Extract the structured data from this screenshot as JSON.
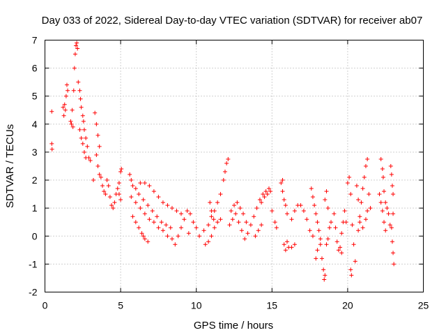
{
  "chart_data": {
    "type": "scatter",
    "title": "Day 033 of 2022, Sidereal Day-to-day VTEC variation (SDTVAR) for receiver ab07",
    "xlabel": "GPS time / hours",
    "ylabel": "SDTVAR / TECUs",
    "xlim": [
      0,
      25
    ],
    "ylim": [
      -2,
      7
    ],
    "xticks": [
      0,
      5,
      10,
      15,
      20,
      25
    ],
    "yticks": [
      -2,
      -1,
      0,
      1,
      2,
      3,
      4,
      5,
      6,
      7
    ],
    "xtick_labels": [
      "0",
      "5",
      "10",
      "15",
      "20",
      "25"
    ],
    "ytick_labels": [
      "-2",
      "-1",
      "0",
      "1",
      "2",
      "3",
      "4",
      "5",
      "6",
      "7"
    ],
    "grid": true,
    "marker": "+",
    "color": "#ff0000",
    "series": [
      {
        "name": "SDTVAR",
        "points": [
          [
            0.45,
            4.45
          ],
          [
            0.45,
            3.3
          ],
          [
            0.47,
            3.1
          ],
          [
            1.2,
            4.6
          ],
          [
            1.3,
            4.7
          ],
          [
            1.4,
            5.0
          ],
          [
            1.45,
            5.4
          ],
          [
            1.5,
            5.2
          ],
          [
            1.35,
            4.5
          ],
          [
            1.25,
            4.3
          ],
          [
            1.7,
            4.1
          ],
          [
            1.8,
            4.5
          ],
          [
            1.9,
            5.2
          ],
          [
            1.95,
            6.0
          ],
          [
            2.0,
            6.5
          ],
          [
            2.05,
            6.8
          ],
          [
            2.1,
            6.9
          ],
          [
            2.15,
            6.7
          ],
          [
            1.85,
            3.9
          ],
          [
            1.75,
            4.0
          ],
          [
            2.2,
            5.5
          ],
          [
            2.3,
            5.2
          ],
          [
            2.35,
            4.9
          ],
          [
            2.4,
            4.6
          ],
          [
            2.5,
            4.3
          ],
          [
            2.55,
            4.1
          ],
          [
            2.6,
            3.8
          ],
          [
            2.7,
            3.5
          ],
          [
            2.8,
            3.2
          ],
          [
            2.9,
            2.8
          ],
          [
            3.0,
            2.7
          ],
          [
            2.3,
            3.8
          ],
          [
            2.4,
            3.5
          ],
          [
            2.5,
            3.3
          ],
          [
            2.6,
            3.0
          ],
          [
            2.7,
            2.8
          ],
          [
            3.3,
            4.4
          ],
          [
            3.4,
            4.0
          ],
          [
            3.5,
            3.6
          ],
          [
            3.6,
            3.2
          ],
          [
            3.4,
            2.9
          ],
          [
            3.5,
            2.5
          ],
          [
            3.6,
            2.2
          ],
          [
            3.2,
            2.0
          ],
          [
            3.7,
            2.1
          ],
          [
            3.8,
            1.8
          ],
          [
            3.9,
            1.6
          ],
          [
            4.0,
            1.5
          ],
          [
            4.1,
            2.0
          ],
          [
            4.2,
            1.8
          ],
          [
            4.3,
            1.4
          ],
          [
            4.4,
            1.1
          ],
          [
            4.5,
            1.0
          ],
          [
            4.6,
            1.2
          ],
          [
            4.7,
            1.5
          ],
          [
            4.8,
            1.7
          ],
          [
            4.9,
            1.9
          ],
          [
            5.0,
            2.3
          ],
          [
            5.05,
            2.4
          ],
          [
            4.9,
            1.5
          ],
          [
            5.0,
            1.3
          ],
          [
            5.6,
            2.2
          ],
          [
            5.7,
            2.0
          ],
          [
            5.8,
            1.8
          ],
          [
            6.0,
            1.7
          ],
          [
            6.2,
            1.5
          ],
          [
            6.5,
            1.3
          ],
          [
            6.8,
            1.1
          ],
          [
            7.1,
            0.9
          ],
          [
            7.4,
            0.7
          ],
          [
            7.7,
            0.5
          ],
          [
            8.0,
            0.4
          ],
          [
            8.3,
            0.3
          ],
          [
            5.7,
            1.4
          ],
          [
            6.0,
            1.2
          ],
          [
            6.3,
            1.0
          ],
          [
            6.6,
            0.8
          ],
          [
            6.9,
            0.6
          ],
          [
            7.2,
            0.5
          ],
          [
            7.5,
            0.3
          ],
          [
            7.8,
            0.2
          ],
          [
            8.1,
            0.0
          ],
          [
            8.4,
            -0.1
          ],
          [
            5.8,
            0.7
          ],
          [
            6.0,
            0.5
          ],
          [
            6.2,
            0.3
          ],
          [
            6.4,
            0.1
          ],
          [
            6.6,
            -0.1
          ],
          [
            6.8,
            -0.2
          ],
          [
            6.5,
            0.0
          ],
          [
            6.3,
            1.9
          ],
          [
            6.6,
            1.9
          ],
          [
            6.9,
            1.8
          ],
          [
            7.2,
            1.6
          ],
          [
            7.5,
            1.4
          ],
          [
            7.8,
            1.2
          ],
          [
            8.1,
            1.1
          ],
          [
            8.4,
            1.0
          ],
          [
            8.7,
            0.9
          ],
          [
            9.0,
            0.8
          ],
          [
            8.6,
            -0.3
          ],
          [
            8.8,
            0.0
          ],
          [
            9.0,
            0.3
          ],
          [
            9.2,
            0.6
          ],
          [
            9.4,
            0.9
          ],
          [
            9.6,
            0.8
          ],
          [
            9.8,
            0.5
          ],
          [
            10.0,
            0.3
          ],
          [
            10.2,
            0.0
          ],
          [
            9.5,
            0.1
          ],
          [
            10.5,
            0.2
          ],
          [
            10.8,
            0.4
          ],
          [
            11.0,
            0.7
          ],
          [
            11.2,
            0.9
          ],
          [
            11.4,
            1.2
          ],
          [
            11.6,
            1.5
          ],
          [
            11.8,
            2.0
          ],
          [
            11.9,
            2.3
          ],
          [
            12.0,
            2.6
          ],
          [
            12.1,
            2.75
          ],
          [
            10.6,
            -0.3
          ],
          [
            10.8,
            -0.2
          ],
          [
            11.0,
            0.0
          ],
          [
            11.2,
            0.3
          ],
          [
            11.4,
            0.5
          ],
          [
            11.6,
            0.6
          ],
          [
            10.9,
            1.2
          ],
          [
            11.0,
            0.9
          ],
          [
            11.15,
            0.6
          ],
          [
            12.2,
            0.4
          ],
          [
            12.4,
            0.6
          ],
          [
            12.6,
            0.8
          ],
          [
            12.8,
            0.5
          ],
          [
            13.0,
            0.2
          ],
          [
            13.2,
            -0.1
          ],
          [
            13.4,
            0.1
          ],
          [
            13.6,
            0.4
          ],
          [
            13.8,
            0.7
          ],
          [
            14.0,
            1.0
          ],
          [
            12.3,
            0.9
          ],
          [
            12.5,
            1.1
          ],
          [
            12.7,
            1.2
          ],
          [
            12.9,
            1.0
          ],
          [
            13.1,
            0.8
          ],
          [
            13.3,
            0.5
          ],
          [
            14.2,
            1.3
          ],
          [
            14.4,
            1.5
          ],
          [
            14.6,
            1.6
          ],
          [
            14.8,
            1.7
          ],
          [
            14.3,
            1.2
          ],
          [
            14.5,
            1.4
          ],
          [
            14.7,
            1.5
          ],
          [
            14.9,
            1.6
          ],
          [
            13.9,
            0.0
          ],
          [
            14.1,
            0.2
          ],
          [
            14.3,
            0.4
          ],
          [
            15.0,
            0.9
          ],
          [
            15.2,
            0.5
          ],
          [
            15.3,
            0.3
          ],
          [
            15.6,
            1.9
          ],
          [
            15.7,
            1.6
          ],
          [
            15.8,
            1.3
          ],
          [
            15.9,
            1.1
          ],
          [
            15.7,
            2.0
          ],
          [
            16.0,
            0.8
          ],
          [
            15.8,
            -0.3
          ],
          [
            16.0,
            -0.2
          ],
          [
            16.1,
            -0.4
          ],
          [
            16.3,
            -0.4
          ],
          [
            16.5,
            -0.3
          ],
          [
            15.9,
            -0.5
          ],
          [
            16.3,
            0.6
          ],
          [
            16.5,
            0.9
          ],
          [
            16.7,
            1.1
          ],
          [
            16.9,
            1.1
          ],
          [
            17.1,
            0.9
          ],
          [
            17.3,
            0.6
          ],
          [
            17.5,
            0.2
          ],
          [
            17.7,
            0.0
          ],
          [
            17.6,
            1.7
          ],
          [
            17.7,
            1.4
          ],
          [
            17.8,
            1.1
          ],
          [
            17.9,
            0.8
          ],
          [
            18.0,
            0.5
          ],
          [
            18.1,
            0.2
          ],
          [
            18.2,
            -0.3
          ],
          [
            18.3,
            -0.8
          ],
          [
            18.4,
            -1.2
          ],
          [
            18.5,
            -1.4
          ],
          [
            18.45,
            -1.55
          ],
          [
            17.9,
            -0.8
          ],
          [
            18.0,
            -0.5
          ],
          [
            18.2,
            -0.1
          ],
          [
            18.6,
            -0.3
          ],
          [
            18.7,
            -0.1
          ],
          [
            18.5,
            1.3
          ],
          [
            18.6,
            1.6
          ],
          [
            18.7,
            1.0
          ],
          [
            18.8,
            0.3
          ],
          [
            18.9,
            0.5
          ],
          [
            19.1,
            0.8
          ],
          [
            19.2,
            0.3
          ],
          [
            19.3,
            -0.2
          ],
          [
            19.4,
            -0.5
          ],
          [
            19.5,
            -0.4
          ],
          [
            19.6,
            0.1
          ],
          [
            19.7,
            0.5
          ],
          [
            19.8,
            0.9
          ],
          [
            19.9,
            0.5
          ],
          [
            19.6,
            -0.6
          ],
          [
            20.0,
            1.9
          ],
          [
            20.1,
            2.1
          ],
          [
            20.2,
            1.5
          ],
          [
            20.3,
            0.4
          ],
          [
            20.4,
            -0.3
          ],
          [
            20.5,
            -0.9
          ],
          [
            20.2,
            -1.2
          ],
          [
            20.25,
            -1.4
          ],
          [
            20.6,
            1.8
          ],
          [
            20.7,
            1.3
          ],
          [
            20.8,
            0.7
          ],
          [
            20.9,
            1.2
          ],
          [
            21.0,
            1.7
          ],
          [
            21.1,
            2.1
          ],
          [
            21.2,
            2.5
          ],
          [
            21.3,
            2.75
          ],
          [
            21.4,
            1.5
          ],
          [
            21.5,
            1.0
          ],
          [
            20.7,
            0.2
          ],
          [
            20.8,
            0.5
          ],
          [
            21.0,
            0.3
          ],
          [
            21.2,
            0.6
          ],
          [
            21.3,
            0.9
          ],
          [
            22.2,
            2.75
          ],
          [
            22.3,
            2.4
          ],
          [
            22.35,
            2.1
          ],
          [
            22.4,
            1.6
          ],
          [
            22.5,
            1.2
          ],
          [
            22.6,
            1.0
          ],
          [
            22.7,
            0.8
          ],
          [
            22.8,
            0.4
          ],
          [
            22.1,
            1.5
          ],
          [
            22.2,
            1.2
          ],
          [
            22.3,
            0.9
          ],
          [
            22.4,
            0.5
          ],
          [
            22.5,
            0.2
          ],
          [
            22.85,
            2.5
          ],
          [
            22.9,
            2.2
          ],
          [
            22.95,
            1.8
          ],
          [
            23.0,
            1.5
          ],
          [
            22.9,
            0.3
          ],
          [
            22.95,
            -0.2
          ],
          [
            23.0,
            -0.6
          ],
          [
            23.05,
            -1.0
          ],
          [
            23.0,
            0.8
          ]
        ]
      }
    ]
  }
}
